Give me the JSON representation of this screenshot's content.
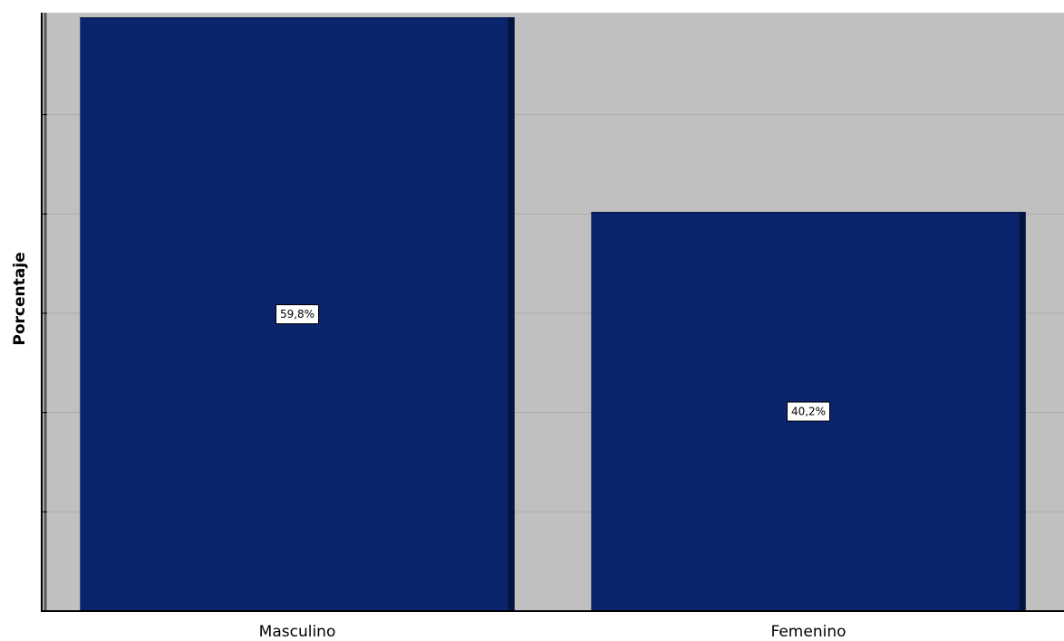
{
  "chart_data": {
    "type": "bar",
    "categories": [
      "Masculino",
      "Femenino"
    ],
    "values": [
      59.8,
      40.2
    ],
    "value_labels": [
      "59,8%",
      "40,2%"
    ],
    "ylabel": "Porcentaje",
    "xlabel": "",
    "ylim": [
      0,
      60
    ],
    "grid": true,
    "colors": {
      "bar": "#0a246e",
      "bar_edge": "#041440",
      "plot_background": "#c0c0c0",
      "gridline": "#acacac",
      "axis": "#000000",
      "label_box": "#ffffff"
    }
  }
}
